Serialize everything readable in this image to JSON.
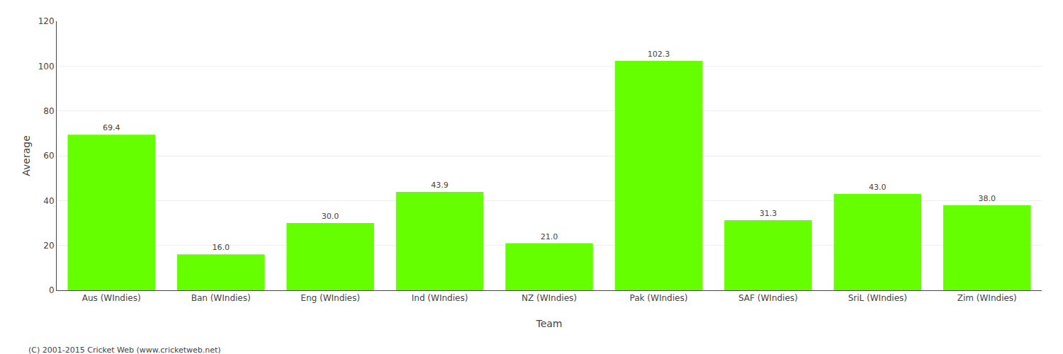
{
  "chart_data": {
    "type": "bar",
    "categories": [
      "Aus (WIndies)",
      "Ban (WIndies)",
      "Eng (WIndies)",
      "Ind (WIndies)",
      "NZ (WIndies)",
      "Pak (WIndies)",
      "SAF (WIndies)",
      "SriL (WIndies)",
      "Zim (WIndies)"
    ],
    "values": [
      69.4,
      16.0,
      30.0,
      43.9,
      21.0,
      102.3,
      31.3,
      43.0,
      38.0
    ],
    "value_labels": [
      "69.4",
      "16.0",
      "30.0",
      "43.9",
      "21.0",
      "102.3",
      "31.3",
      "43.0",
      "38.0"
    ],
    "data_labels": true,
    "color": "#66ff00",
    "x_label": "Team",
    "y_label": "Average",
    "ylim": [
      0,
      120
    ],
    "yticks": [
      0,
      20,
      40,
      60,
      80,
      100,
      120
    ],
    "grid": true,
    "annotations": [
      "(C) 2001-2015 Cricket Web (www.cricketweb.net)"
    ]
  }
}
